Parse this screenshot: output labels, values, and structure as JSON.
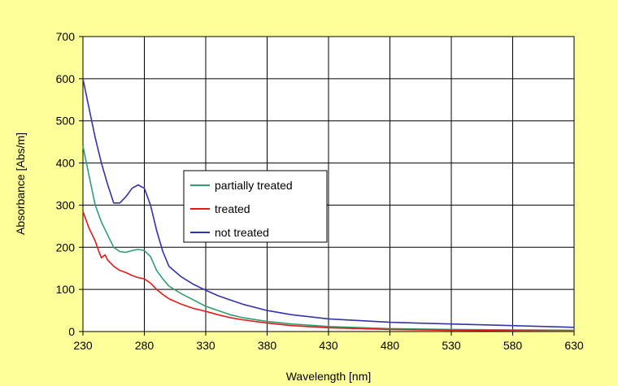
{
  "chart_data": {
    "type": "line",
    "xlabel": "Wavelength [nm]",
    "ylabel": "Absorbance  [Abs/m]",
    "xlim": [
      230,
      630
    ],
    "ylim": [
      0,
      700
    ],
    "xticks": [
      230,
      280,
      330,
      380,
      430,
      480,
      530,
      580,
      630
    ],
    "yticks": [
      0,
      100,
      200,
      300,
      400,
      500,
      600,
      700
    ],
    "grid": true,
    "legend_position": "center-left",
    "background_color": "#ffff99",
    "plot_background_color": "#ffffff",
    "series": [
      {
        "name": "partially treated",
        "color": "#2e9e6e",
        "x": [
          230,
          235,
          240,
          245,
          250,
          255,
          260,
          265,
          270,
          275,
          280,
          285,
          290,
          295,
          300,
          310,
          320,
          330,
          340,
          350,
          360,
          380,
          400,
          430,
          480,
          530,
          580,
          630
        ],
        "y": [
          440,
          370,
          300,
          260,
          230,
          200,
          190,
          188,
          192,
          195,
          192,
          178,
          145,
          125,
          108,
          90,
          75,
          60,
          50,
          40,
          33,
          24,
          18,
          12,
          7,
          5,
          4,
          3
        ]
      },
      {
        "name": "treated",
        "color": "#e41a1a",
        "x": [
          230,
          235,
          240,
          243,
          245,
          248,
          250,
          255,
          260,
          265,
          270,
          275,
          280,
          285,
          290,
          295,
          300,
          310,
          320,
          330,
          340,
          350,
          360,
          380,
          400,
          430,
          480,
          530,
          580,
          630
        ],
        "y": [
          285,
          245,
          215,
          190,
          175,
          182,
          170,
          155,
          145,
          140,
          133,
          128,
          125,
          115,
          100,
          88,
          78,
          65,
          55,
          48,
          40,
          33,
          28,
          20,
          14,
          9,
          5,
          3,
          2,
          1
        ]
      },
      {
        "name": "not treated",
        "color": "#3333aa",
        "x": [
          230,
          235,
          240,
          245,
          250,
          255,
          260,
          265,
          270,
          275,
          280,
          285,
          290,
          295,
          300,
          310,
          320,
          330,
          340,
          350,
          360,
          380,
          400,
          430,
          480,
          530,
          580,
          630
        ],
        "y": [
          600,
          530,
          460,
          400,
          350,
          305,
          305,
          320,
          340,
          348,
          340,
          300,
          240,
          190,
          155,
          130,
          112,
          98,
          85,
          75,
          65,
          50,
          40,
          30,
          22,
          18,
          14,
          10
        ]
      }
    ]
  }
}
